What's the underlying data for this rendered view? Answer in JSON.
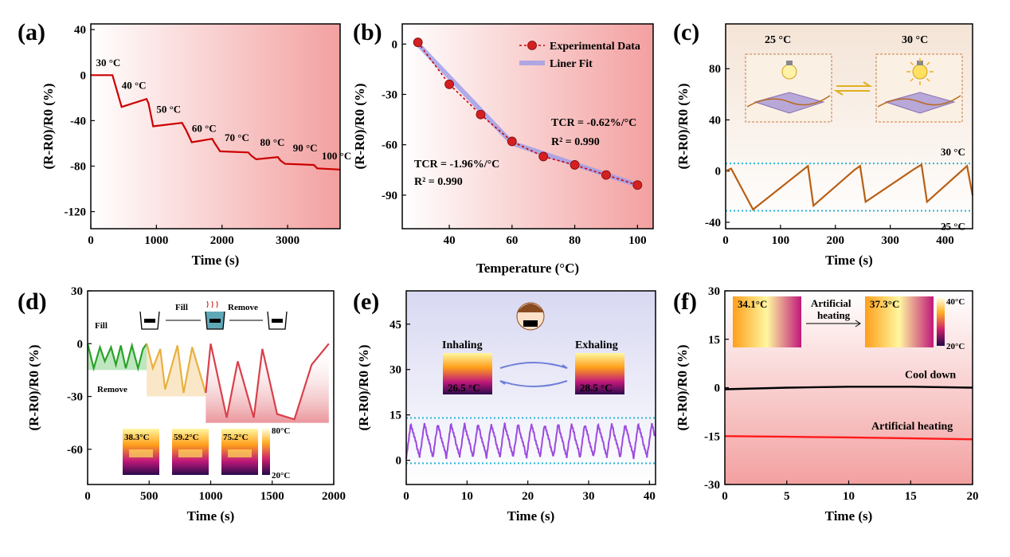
{
  "chart_data": [
    {
      "panel": "(a)",
      "type": "line",
      "xlabel": "Time (s)",
      "ylabel": "(R-R0)/R0 (%)",
      "xlim": [
        0,
        3800
      ],
      "ylim": [
        -135,
        45
      ],
      "xticks": [
        0,
        1000,
        2000,
        3000
      ],
      "yticks": [
        40,
        0,
        -40,
        -80,
        -120
      ],
      "x": [
        0,
        330,
        470,
        850,
        880,
        950,
        1390,
        1450,
        1540,
        1850,
        1890,
        1970,
        2400,
        2450,
        2520,
        2850,
        2890,
        2960,
        3400,
        3450,
        3800
      ],
      "y": [
        0,
        0,
        -28,
        -21,
        -25,
        -45,
        -42,
        -48,
        -59,
        -56,
        -60,
        -67,
        -68,
        -71,
        -74,
        -72,
        -75,
        -78,
        -79,
        -82,
        -83
      ],
      "color": "#cc0000",
      "annotations": [
        "30 °C",
        "40 °C",
        "50 °C",
        "60 °C",
        "70 °C",
        "80 °C",
        "90 °C",
        "100 °C"
      ]
    },
    {
      "panel": "(b)",
      "type": "scatter",
      "xlabel": "Temperature (°C)",
      "ylabel": "(R-R0)/R0 (%)",
      "xlim": [
        25,
        105
      ],
      "ylim": [
        -110,
        12
      ],
      "xticks": [
        40,
        60,
        80,
        100
      ],
      "yticks": [
        0,
        -30,
        -60,
        -90
      ],
      "series": [
        {
          "name": "Experimental Data",
          "x": [
            30,
            40,
            50,
            60,
            70,
            80,
            90,
            100
          ],
          "y": [
            1,
            -24,
            -42,
            -58,
            -67,
            -72,
            -78,
            -84
          ],
          "color": "#cc0000"
        },
        {
          "name": "Liner Fit",
          "x": [
            30,
            60,
            100
          ],
          "y": [
            0,
            -59,
            -84
          ],
          "color": "#9b9be8"
        }
      ],
      "annotations": [
        "TCR = -0.62%/°C",
        "R² = 0.990",
        "TCR = -1.96%/°C",
        "R² = 0.990"
      ]
    },
    {
      "panel": "(c)",
      "type": "line",
      "xlabel": "Time (s)",
      "ylabel": "(R-R0)/R0 (%)",
      "xlim": [
        0,
        450
      ],
      "ylim": [
        -45,
        115
      ],
      "xticks": [
        0,
        100,
        200,
        300,
        400
      ],
      "yticks": [
        80,
        40,
        0,
        -40
      ],
      "x": [
        0,
        10,
        50,
        150,
        160,
        235,
        245,
        255,
        345,
        357,
        367,
        440,
        450
      ],
      "y": [
        0,
        2,
        -30,
        4,
        -27,
        1,
        4,
        -24,
        2,
        5,
        -24,
        4,
        -19
      ],
      "color": "#b85f14",
      "reference_lines": [
        {
          "y": 6,
          "label": "30 °C"
        },
        {
          "y": -31,
          "label": "25 °C"
        }
      ],
      "inset_labels": [
        "25 °C",
        "30 °C"
      ]
    },
    {
      "panel": "(d)",
      "type": "line",
      "xlabel": "Time (s)",
      "ylabel": "(R-R0)/R0 (%)",
      "xlim": [
        0,
        2000
      ],
      "ylim": [
        -80,
        30
      ],
      "xticks": [
        0,
        500,
        1000,
        1500,
        2000
      ],
      "yticks": [
        30,
        0,
        -30,
        -60
      ],
      "series": [
        {
          "name": "",
          "color": "#29a329",
          "x": [
            0,
            50,
            100,
            140,
            190,
            230,
            270,
            310,
            360,
            410,
            450,
            480
          ],
          "y": [
            0,
            -14,
            -2,
            -10,
            -2,
            -12,
            -1,
            -14,
            -1,
            -14,
            -3,
            0
          ]
        },
        {
          "name": "",
          "color": "#e8b040",
          "x": [
            480,
            530,
            590,
            630,
            730,
            780,
            850,
            960
          ],
          "y": [
            0,
            -14,
            -3,
            -26,
            -1,
            -28,
            -2,
            -28
          ]
        },
        {
          "name": "",
          "color": "#d9404a",
          "x": [
            960,
            1000,
            1130,
            1220,
            1350,
            1420,
            1540,
            1680,
            1820,
            1960
          ],
          "y": [
            -28,
            0,
            -42,
            -10,
            -42,
            -3,
            -40,
            -43,
            -12,
            0
          ]
        }
      ],
      "annotations": [
        "Fill",
        "Remove"
      ],
      "inset_labels": [
        "Fill",
        "Remove"
      ],
      "thermal_labels": [
        "38.3°C",
        "59.2°C",
        "75.2°C"
      ],
      "colorbar_labels": [
        "80°C",
        "20°C"
      ]
    },
    {
      "panel": "(e)",
      "type": "line",
      "xlabel": "Time (s)",
      "ylabel": "(R-R0)/R0 (%)",
      "xlim": [
        0,
        41
      ],
      "ylim": [
        -8,
        56
      ],
      "xticks": [
        0,
        10,
        20,
        30,
        40
      ],
      "yticks": [
        45,
        30,
        15,
        0
      ],
      "color": "#9b4be0",
      "cycle_period_s": 2.2,
      "peak": 12,
      "trough": 1,
      "reference_lines": [
        {
          "y": 14
        },
        {
          "y": -1
        }
      ],
      "inset_labels": [
        "Inhaling",
        "Exhaling"
      ],
      "thermal_labels": [
        "26.5 °C",
        "28.5 °C"
      ]
    },
    {
      "panel": "(f)",
      "type": "line",
      "xlabel": "Time (s)",
      "ylabel": "(R-R0)/R0 (%)",
      "xlim": [
        0,
        20
      ],
      "ylim": [
        -30,
        30
      ],
      "xticks": [
        0,
        5,
        10,
        15,
        20
      ],
      "yticks": [
        30,
        15,
        0,
        -15,
        -30
      ],
      "series": [
        {
          "name": "Cool down",
          "x": [
            0,
            5,
            10,
            15,
            20
          ],
          "y": [
            -0.5,
            0,
            0.3,
            0.3,
            0
          ],
          "color": "#000000"
        },
        {
          "name": "Artificial heating",
          "x": [
            0,
            5,
            10,
            15,
            20
          ],
          "y": [
            -15,
            -15.2,
            -15.4,
            -15.7,
            -16
          ],
          "color": "#ff1a1a"
        }
      ],
      "inset_labels": [
        "Artificial",
        "heating"
      ],
      "thermal_labels": [
        "34.1°C",
        "37.3°C"
      ],
      "colorbar_labels": [
        "40°C",
        "20°C"
      ]
    }
  ]
}
